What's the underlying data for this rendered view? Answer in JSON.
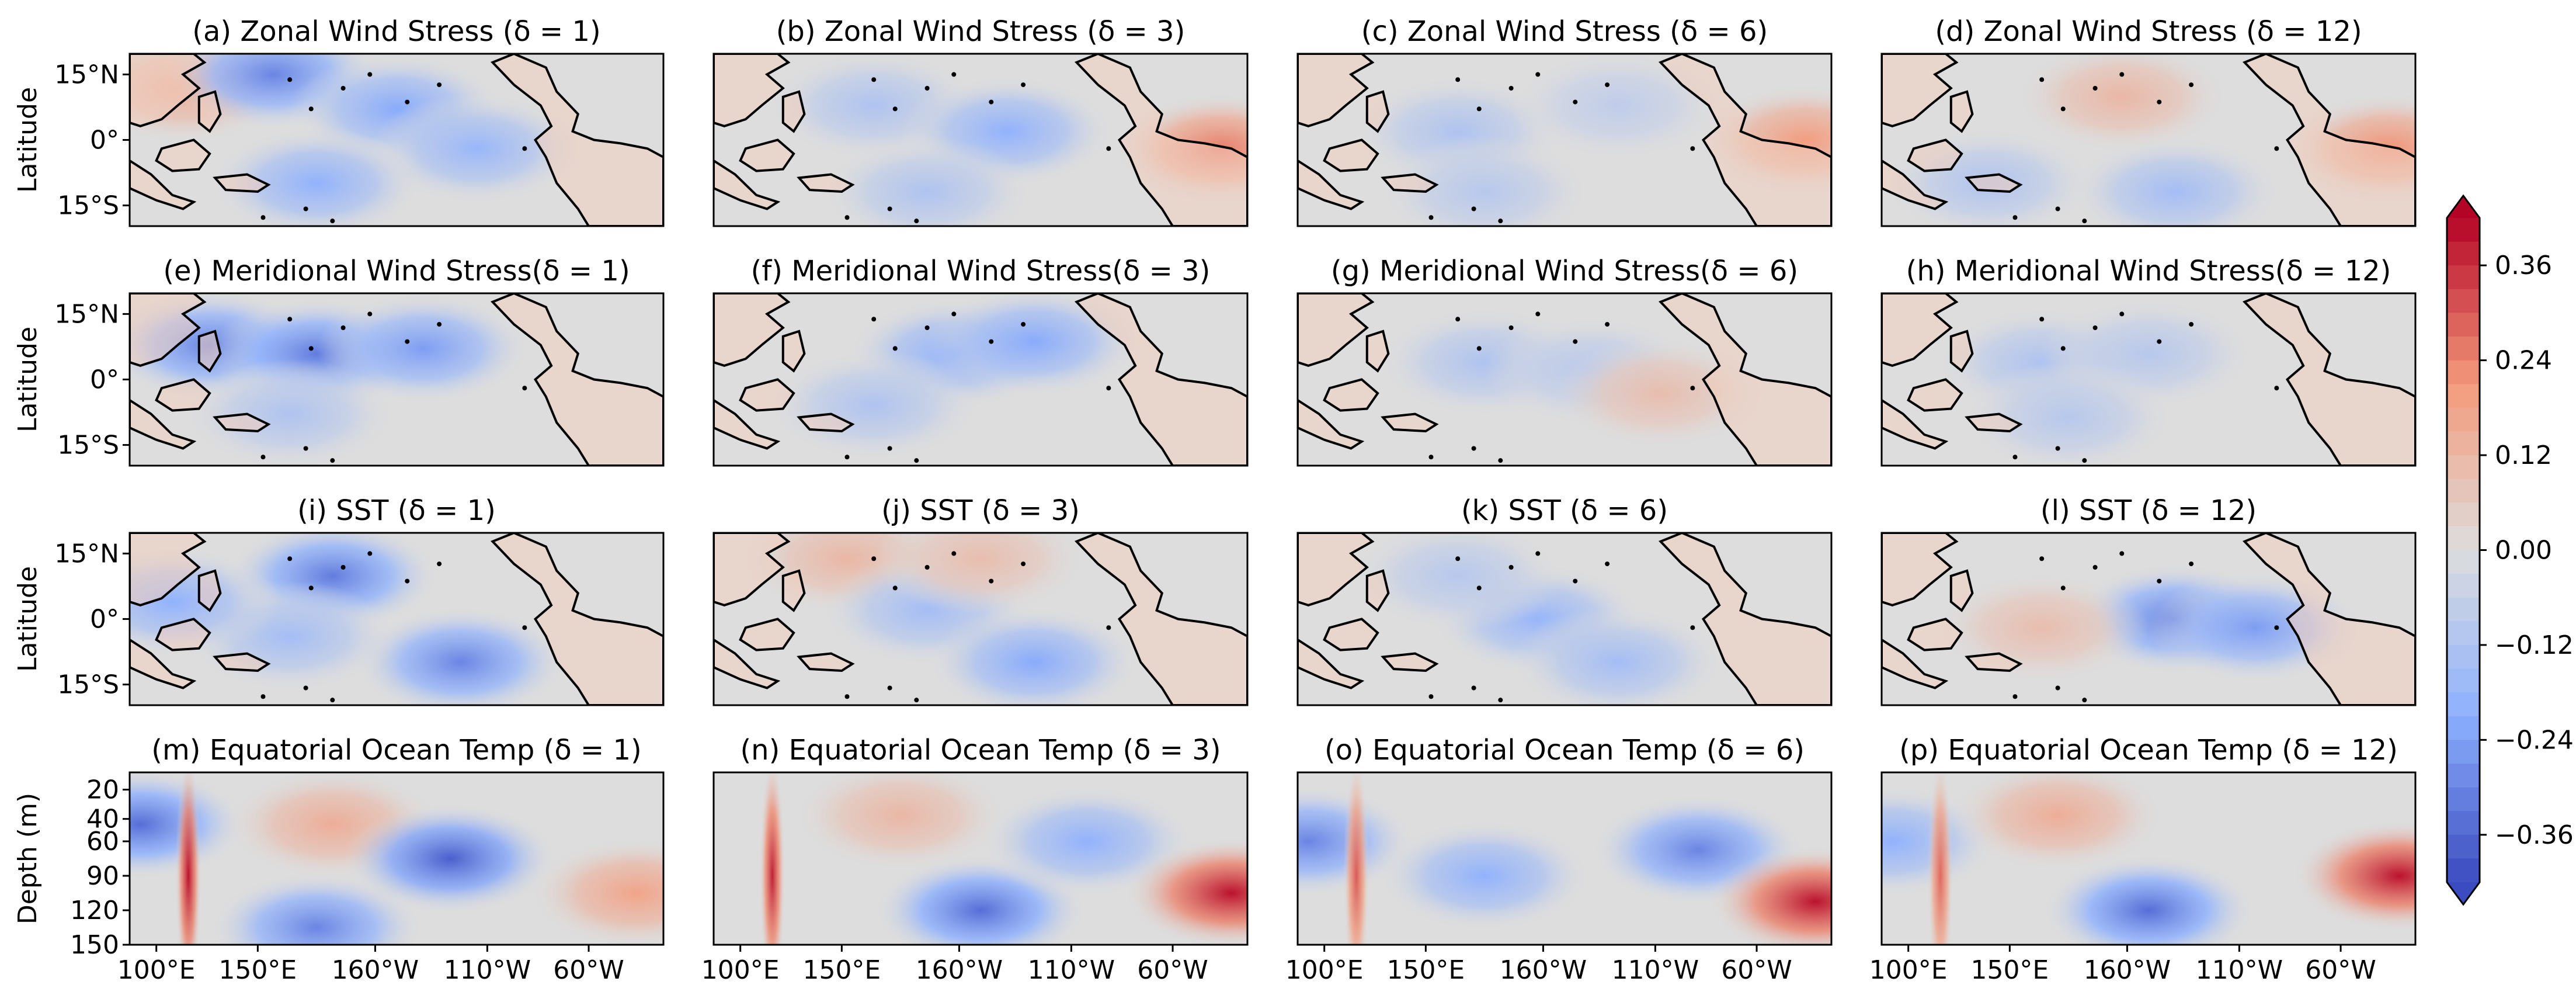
{
  "chart_data": {
    "type": "heatmap",
    "colormap": "coolwarm",
    "colorbar": {
      "ticks": [
        "0.36",
        "0.24",
        "0.12",
        "0.00",
        "−0.12",
        "−0.24",
        "−0.36"
      ],
      "tick_values": [
        0.36,
        0.24,
        0.12,
        0.0,
        -0.12,
        -0.24,
        -0.36
      ],
      "range": [
        -0.42,
        0.42
      ],
      "extend": "both"
    },
    "map_rows": {
      "ylabel": "Latitude",
      "yticks": [
        "15°N",
        "0°",
        "15°S"
      ],
      "ylim": [
        -20,
        20
      ]
    },
    "depth_row": {
      "ylabel": "Depth (m)",
      "yticks": [
        "20",
        "40",
        "60",
        "90",
        "120",
        "150"
      ],
      "ylim": [
        150,
        0
      ]
    },
    "xticks": [
      "100°E",
      "150°E",
      "160°W",
      "110°W",
      "60°W"
    ],
    "panels": [
      {
        "title": "(a) Zonal Wind Stress (δ = 1)",
        "kind": "map",
        "anomalies": [
          {
            "x": 0.1,
            "y": 0.2,
            "v": 0.15
          },
          {
            "x": 0.27,
            "y": 0.12,
            "v": -0.3
          },
          {
            "x": 0.5,
            "y": 0.32,
            "v": -0.22
          },
          {
            "x": 0.65,
            "y": 0.55,
            "v": -0.18
          },
          {
            "x": 0.35,
            "y": 0.75,
            "v": -0.2
          }
        ]
      },
      {
        "title": "(b) Zonal Wind Stress (δ = 3)",
        "kind": "map",
        "anomalies": [
          {
            "x": 0.3,
            "y": 0.3,
            "v": -0.12
          },
          {
            "x": 0.55,
            "y": 0.45,
            "v": -0.2
          },
          {
            "x": 0.95,
            "y": 0.55,
            "v": 0.25
          },
          {
            "x": 0.4,
            "y": 0.8,
            "v": -0.12
          }
        ]
      },
      {
        "title": "(c) Zonal Wind Stress (δ = 6)",
        "kind": "map",
        "anomalies": [
          {
            "x": 0.3,
            "y": 0.45,
            "v": -0.12
          },
          {
            "x": 0.6,
            "y": 0.3,
            "v": -0.08
          },
          {
            "x": 0.95,
            "y": 0.5,
            "v": 0.2
          },
          {
            "x": 0.35,
            "y": 0.8,
            "v": -0.1
          }
        ]
      },
      {
        "title": "(d) Zonal Wind Stress (δ = 12)",
        "kind": "map",
        "anomalies": [
          {
            "x": 0.45,
            "y": 0.25,
            "v": 0.12
          },
          {
            "x": 0.55,
            "y": 0.8,
            "v": -0.15
          },
          {
            "x": 0.95,
            "y": 0.55,
            "v": 0.22
          },
          {
            "x": 0.2,
            "y": 0.75,
            "v": -0.12
          }
        ]
      },
      {
        "title": "(e) Meridional Wind Stress(δ = 1)",
        "kind": "map",
        "anomalies": [
          {
            "x": 0.15,
            "y": 0.3,
            "v": -0.3
          },
          {
            "x": 0.35,
            "y": 0.35,
            "v": -0.32
          },
          {
            "x": 0.55,
            "y": 0.32,
            "v": -0.25
          },
          {
            "x": 0.3,
            "y": 0.7,
            "v": -0.12
          }
        ]
      },
      {
        "title": "(f) Meridional Wind Stress(δ = 3)",
        "kind": "map",
        "anomalies": [
          {
            "x": 0.45,
            "y": 0.35,
            "v": -0.2
          },
          {
            "x": 0.6,
            "y": 0.28,
            "v": -0.22
          },
          {
            "x": 0.3,
            "y": 0.65,
            "v": -0.12
          }
        ]
      },
      {
        "title": "(g) Meridional Wind Stress(δ = 6)",
        "kind": "map",
        "anomalies": [
          {
            "x": 0.35,
            "y": 0.4,
            "v": -0.12
          },
          {
            "x": 0.55,
            "y": 0.45,
            "v": -0.1
          },
          {
            "x": 0.68,
            "y": 0.58,
            "v": 0.1
          }
        ]
      },
      {
        "title": "(h) Meridional Wind Stress(δ = 12)",
        "kind": "map",
        "anomalies": [
          {
            "x": 0.3,
            "y": 0.4,
            "v": -0.12
          },
          {
            "x": 0.5,
            "y": 0.35,
            "v": -0.1
          },
          {
            "x": 0.35,
            "y": 0.72,
            "v": -0.1
          }
        ]
      },
      {
        "title": "(i) SST (δ = 1)",
        "kind": "map",
        "anomalies": [
          {
            "x": 0.38,
            "y": 0.25,
            "v": -0.32
          },
          {
            "x": 0.62,
            "y": 0.75,
            "v": -0.3
          },
          {
            "x": 0.3,
            "y": 0.6,
            "v": -0.15
          },
          {
            "x": 0.08,
            "y": 0.4,
            "v": -0.2
          }
        ]
      },
      {
        "title": "(j) SST (δ = 3)",
        "kind": "map",
        "anomalies": [
          {
            "x": 0.25,
            "y": 0.15,
            "v": 0.12
          },
          {
            "x": 0.4,
            "y": 0.45,
            "v": -0.15
          },
          {
            "x": 0.6,
            "y": 0.75,
            "v": -0.22
          },
          {
            "x": 0.5,
            "y": 0.15,
            "v": 0.1
          }
        ]
      },
      {
        "title": "(k) SST (δ = 6)",
        "kind": "map",
        "anomalies": [
          {
            "x": 0.45,
            "y": 0.5,
            "v": -0.18
          },
          {
            "x": 0.6,
            "y": 0.75,
            "v": -0.15
          },
          {
            "x": 0.3,
            "y": 0.25,
            "v": -0.1
          }
        ]
      },
      {
        "title": "(l) SST (δ = 12)",
        "kind": "map",
        "anomalies": [
          {
            "x": 0.55,
            "y": 0.5,
            "v": -0.3
          },
          {
            "x": 0.7,
            "y": 0.55,
            "v": -0.25
          },
          {
            "x": 0.3,
            "y": 0.55,
            "v": 0.1
          }
        ]
      },
      {
        "title": "(m) Equatorial Ocean Temp (δ = 1)",
        "kind": "depth",
        "anomalies": [
          {
            "x": 0.02,
            "y": 0.3,
            "v": -0.35
          },
          {
            "x": 0.11,
            "y": 0.6,
            "v": 0.4
          },
          {
            "x": 0.38,
            "y": 0.3,
            "v": 0.15
          },
          {
            "x": 0.6,
            "y": 0.5,
            "v": -0.38
          },
          {
            "x": 0.35,
            "y": 0.9,
            "v": -0.3
          },
          {
            "x": 0.95,
            "y": 0.7,
            "v": 0.18
          }
        ]
      },
      {
        "title": "(n) Equatorial Ocean Temp (δ = 3)",
        "kind": "depth",
        "anomalies": [
          {
            "x": 0.11,
            "y": 0.6,
            "v": 0.38
          },
          {
            "x": 0.35,
            "y": 0.25,
            "v": 0.12
          },
          {
            "x": 0.5,
            "y": 0.8,
            "v": -0.35
          },
          {
            "x": 0.7,
            "y": 0.4,
            "v": -0.2
          },
          {
            "x": 0.97,
            "y": 0.7,
            "v": 0.4
          }
        ]
      },
      {
        "title": "(o) Equatorial Ocean Temp (δ = 6)",
        "kind": "depth",
        "anomalies": [
          {
            "x": 0.02,
            "y": 0.4,
            "v": -0.3
          },
          {
            "x": 0.11,
            "y": 0.6,
            "v": 0.3
          },
          {
            "x": 0.35,
            "y": 0.6,
            "v": -0.2
          },
          {
            "x": 0.75,
            "y": 0.45,
            "v": -0.3
          },
          {
            "x": 0.97,
            "y": 0.75,
            "v": 0.4
          }
        ]
      },
      {
        "title": "(p) Equatorial Ocean Temp (δ = 12)",
        "kind": "depth",
        "anomalies": [
          {
            "x": 0.02,
            "y": 0.4,
            "v": -0.2
          },
          {
            "x": 0.11,
            "y": 0.6,
            "v": 0.28
          },
          {
            "x": 0.33,
            "y": 0.25,
            "v": 0.15
          },
          {
            "x": 0.5,
            "y": 0.8,
            "v": -0.35
          },
          {
            "x": 0.97,
            "y": 0.6,
            "v": 0.4
          }
        ]
      }
    ]
  }
}
